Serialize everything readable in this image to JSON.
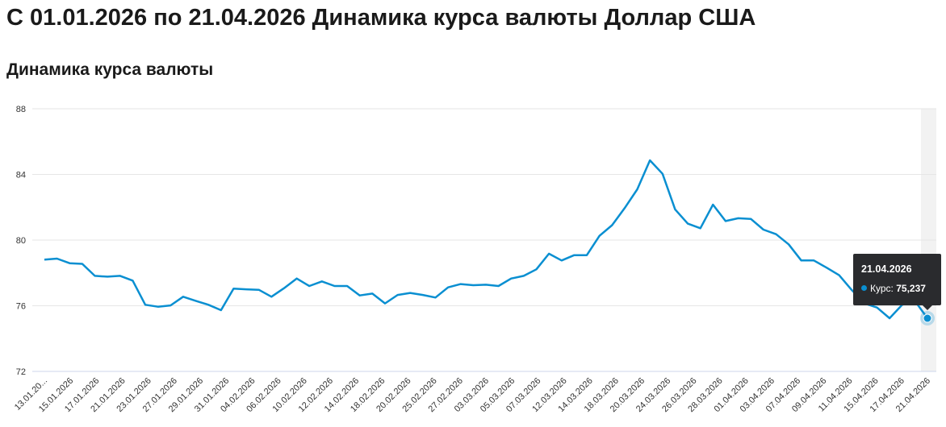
{
  "page": {
    "title": "С 01.01.2026 по 21.04.2026 Динамика курса валюты Доллар США",
    "subtitle": "Динамика курса валюты"
  },
  "colors": {
    "line": "#0a8fd1",
    "grid": "#e6e6e6",
    "axis": "#ccd6eb",
    "tooltip_bg": "#2a2b2e",
    "hover_band": "#f2f2f2"
  },
  "tooltip": {
    "date": "21.04.2026",
    "label": "Курс:",
    "value": "75,237"
  },
  "chart_data": {
    "type": "line",
    "title": "",
    "xlabel": "",
    "ylabel": "",
    "ylim": [
      72,
      88
    ],
    "yticks": [
      72,
      76,
      80,
      84,
      88
    ],
    "grid": true,
    "legend": "none",
    "xtick_labels": [
      "13.01.20...",
      "15.01.2026",
      "17.01.2026",
      "21.01.2026",
      "23.01.2026",
      "27.01.2026",
      "29.01.2026",
      "31.01.2026",
      "04.02.2026",
      "06.02.2026",
      "10.02.2026",
      "12.02.2026",
      "14.02.2026",
      "18.02.2026",
      "20.02.2026",
      "25.02.2026",
      "27.02.2026",
      "03.03.2026",
      "05.03.2026",
      "07.03.2026",
      "12.03.2026",
      "14.03.2026",
      "18.03.2026",
      "20.03.2026",
      "24.03.2026",
      "26.03.2026",
      "28.03.2026",
      "01.04.2026",
      "03.04.2026",
      "07.04.2026",
      "09.04.2026",
      "11.04.2026",
      "15.04.2026",
      "17.04.2026",
      "21.04.2026"
    ],
    "series": [
      {
        "values": [
          78.81,
          78.87,
          78.59,
          78.55,
          77.82,
          77.77,
          77.82,
          77.53,
          76.06,
          75.94,
          76.02,
          76.55,
          76.3,
          76.06,
          75.73,
          77.04,
          77.0,
          76.97,
          76.55,
          77.07,
          77.66,
          77.2,
          77.48,
          77.2,
          77.2,
          76.63,
          76.74,
          76.14,
          76.66,
          76.78,
          76.66,
          76.5,
          77.12,
          77.32,
          77.25,
          77.28,
          77.2,
          77.66,
          77.82,
          78.22,
          79.17,
          78.76,
          79.08,
          79.08,
          80.26,
          80.91,
          81.95,
          83.09,
          84.86,
          84.04,
          81.87,
          81.0,
          80.72,
          82.16,
          81.16,
          81.33,
          81.29,
          80.64,
          80.36,
          79.74,
          78.76,
          78.76,
          78.32,
          77.86,
          76.96,
          76.14,
          75.89,
          75.24,
          76.06,
          76.3,
          75.237
        ]
      }
    ]
  }
}
